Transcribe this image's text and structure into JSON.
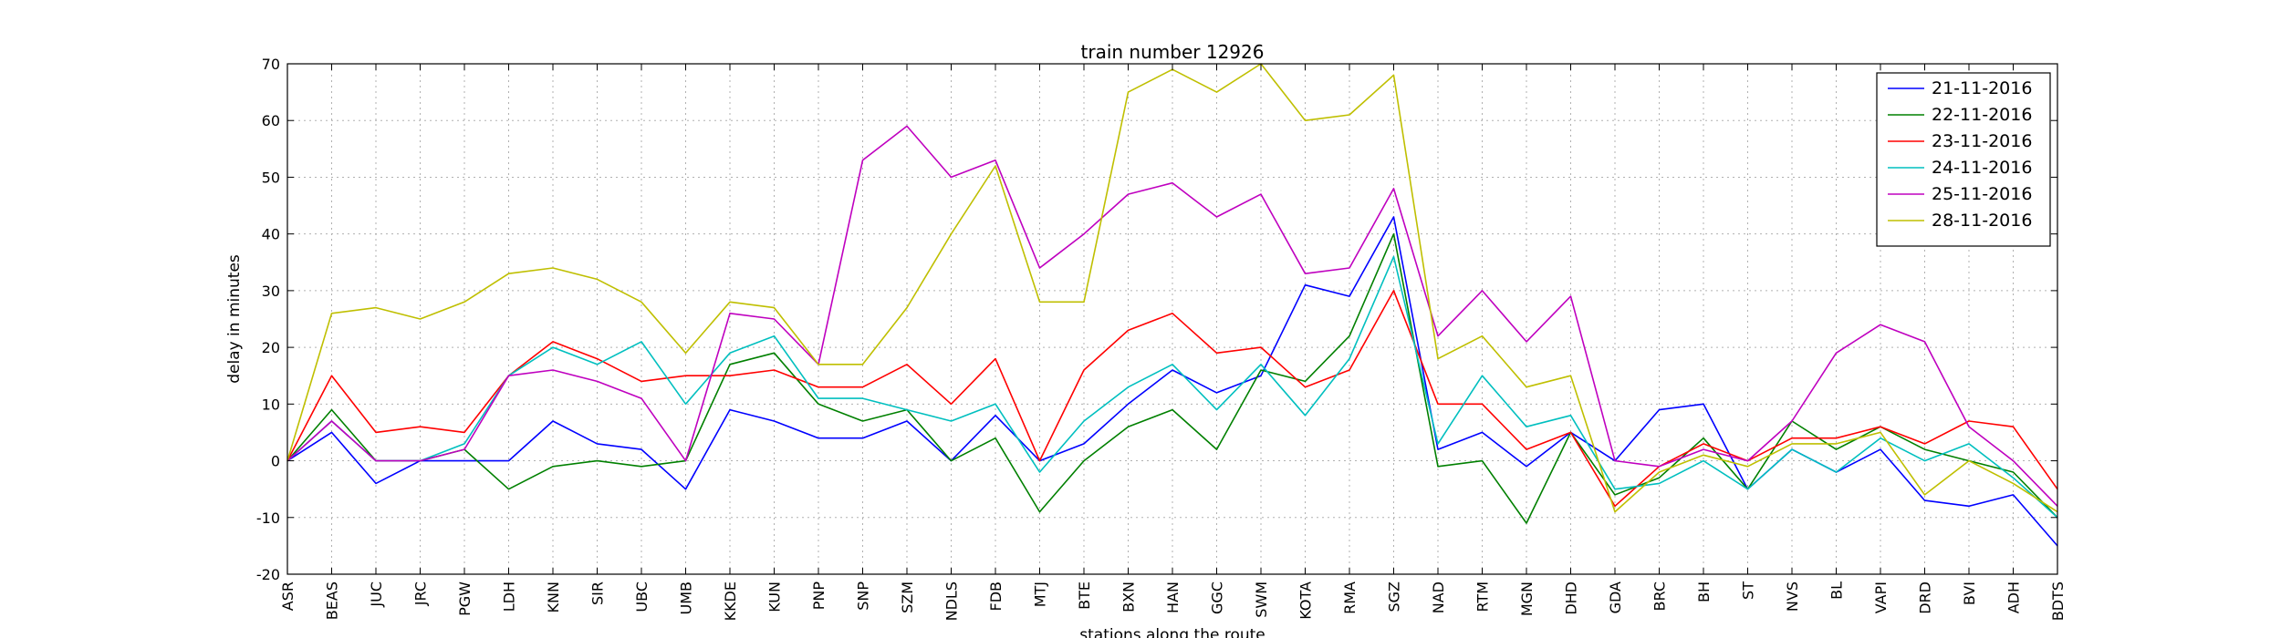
{
  "chart_data": {
    "type": "line",
    "title": "train number 12926",
    "xlabel": "stations along the route",
    "ylabel": "delay in minutes",
    "ylim": [
      -20,
      70
    ],
    "yticks": [
      -20,
      -10,
      0,
      10,
      20,
      30,
      40,
      50,
      60,
      70
    ],
    "grid": true,
    "legend_position": "top-right",
    "categories": [
      "ASR",
      "BEAS",
      "JUC",
      "JRC",
      "PGW",
      "LDH",
      "KNN",
      "SIR",
      "UBC",
      "UMB",
      "KKDE",
      "KUN",
      "PNP",
      "SNP",
      "SZM",
      "NDLS",
      "FDB",
      "MTJ",
      "BTE",
      "BXN",
      "HAN",
      "GGC",
      "SWM",
      "KOTA",
      "RMA",
      "SGZ",
      "NAD",
      "RTM",
      "MGN",
      "DHD",
      "GDA",
      "BRC",
      "BH",
      "ST",
      "NVS",
      "BL",
      "VAPI",
      "DRD",
      "BVI",
      "ADH",
      "BDTS"
    ],
    "series": [
      {
        "name": "21-11-2016",
        "color": "#0000ff",
        "values": [
          0,
          5,
          -4,
          0,
          0,
          0,
          7,
          3,
          2,
          -5,
          9,
          7,
          4,
          4,
          7,
          0,
          8,
          0,
          3,
          10,
          16,
          12,
          15,
          31,
          29,
          43,
          2,
          5,
          -1,
          5,
          0,
          9,
          10,
          -5,
          2,
          -2,
          2,
          -7,
          -8,
          -6,
          -15
        ]
      },
      {
        "name": "22-11-2016",
        "color": "#008000",
        "values": [
          0,
          9,
          0,
          0,
          2,
          -5,
          -1,
          0,
          -1,
          0,
          17,
          19,
          10,
          7,
          9,
          0,
          4,
          -9,
          0,
          6,
          9,
          2,
          16,
          14,
          22,
          40,
          -1,
          0,
          -11,
          5,
          -6,
          -3,
          4,
          -5,
          7,
          2,
          6,
          2,
          0,
          -2,
          -10
        ]
      },
      {
        "name": "23-11-2016",
        "color": "#ff0000",
        "values": [
          0,
          15,
          5,
          6,
          5,
          15,
          21,
          18,
          14,
          15,
          15,
          16,
          13,
          13,
          17,
          10,
          18,
          0,
          16,
          23,
          26,
          19,
          20,
          13,
          16,
          30,
          10,
          10,
          2,
          5,
          -8,
          -1,
          3,
          0,
          4,
          4,
          6,
          3,
          7,
          6,
          -5
        ]
      },
      {
        "name": "24-11-2016",
        "color": "#00bfbf",
        "values": [
          0,
          7,
          0,
          0,
          3,
          15,
          20,
          17,
          21,
          10,
          19,
          22,
          11,
          11,
          9,
          7,
          10,
          -2,
          7,
          13,
          17,
          9,
          17,
          8,
          18,
          36,
          3,
          15,
          6,
          8,
          -5,
          -4,
          0,
          -5,
          2,
          -2,
          4,
          0,
          3,
          -3,
          -10
        ]
      },
      {
        "name": "25-11-2016",
        "color": "#bf00bf",
        "values": [
          0,
          7,
          0,
          0,
          2,
          15,
          16,
          14,
          11,
          0,
          26,
          25,
          17,
          53,
          59,
          50,
          53,
          34,
          40,
          47,
          49,
          43,
          47,
          33,
          34,
          48,
          22,
          30,
          21,
          29,
          0,
          -1,
          2,
          0,
          7,
          19,
          24,
          21,
          6,
          0,
          -8
        ]
      },
      {
        "name": "28-11-2016",
        "color": "#bfbf00",
        "values": [
          0,
          26,
          27,
          25,
          28,
          33,
          34,
          32,
          28,
          19,
          28,
          27,
          17,
          17,
          27,
          40,
          52,
          28,
          28,
          65,
          69,
          65,
          70,
          60,
          61,
          68,
          18,
          22,
          13,
          15,
          -9,
          -2,
          1,
          -1,
          3,
          3,
          5,
          -6,
          0,
          -4,
          -9
        ]
      }
    ]
  }
}
